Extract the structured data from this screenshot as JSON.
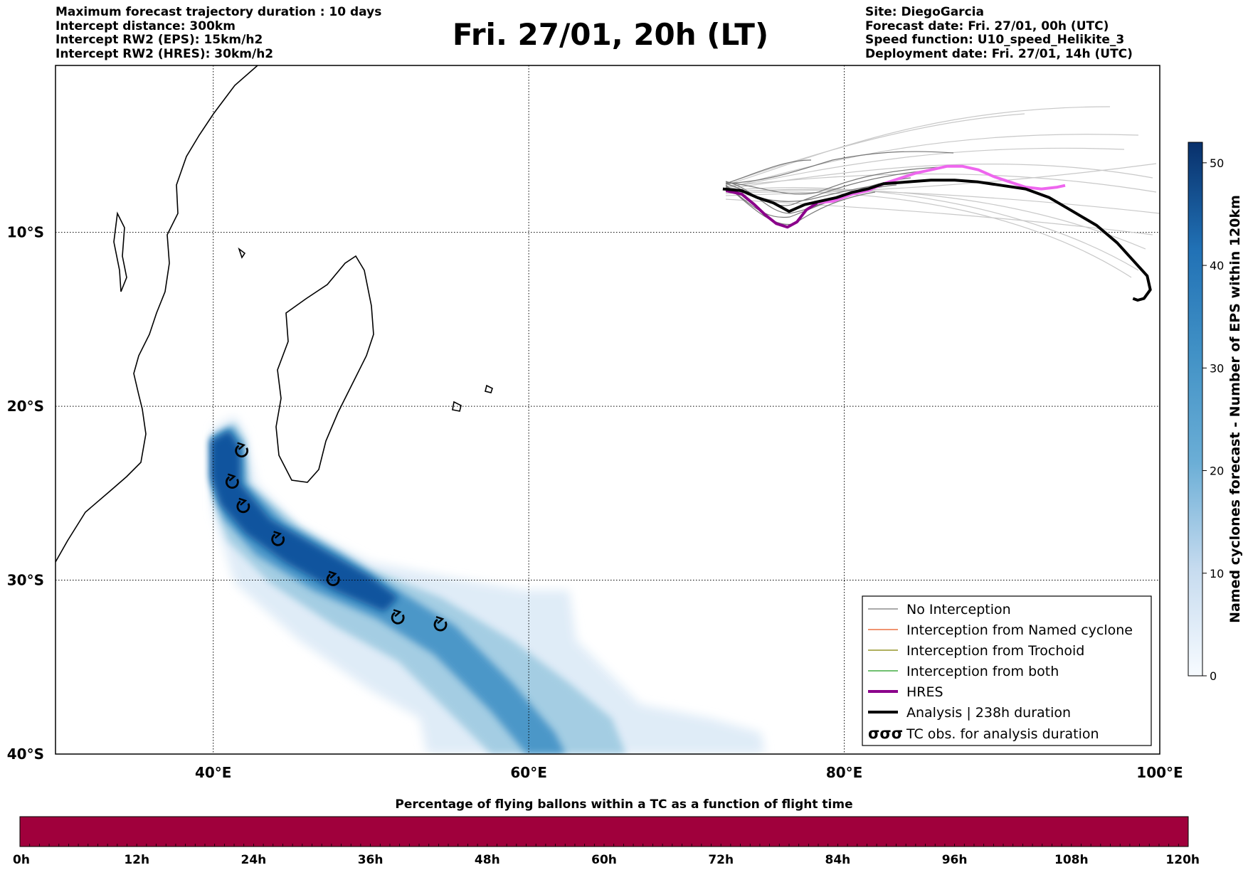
{
  "header": {
    "left_lines": [
      "Maximum forecast trajectory duration : 10 days",
      "Intercept distance: 300km",
      "Intercept RW2 (EPS):  15km/h2",
      "Intercept RW2 (HRES): 30km/h2"
    ],
    "title": "Fri. 27/01, 20h (LT)",
    "right_lines": [
      "Site: DiegoGarcia",
      "Forecast date: Fri. 27/01, 00h (UTC)",
      "Speed function: U10_speed_Helikite_3",
      "Deployment date: Fri. 27/01, 14h (UTC)"
    ]
  },
  "map": {
    "lon_range": [
      30,
      100
    ],
    "lat_range": [
      -40,
      -0.4
    ],
    "lon_ticks": [
      {
        "lon": 40,
        "label": "40°E"
      },
      {
        "lon": 60,
        "label": "60°E"
      },
      {
        "lon": 80,
        "label": "80°E"
      },
      {
        "lon": 100,
        "label": "100°E"
      }
    ],
    "lat_ticks": [
      {
        "lat": -10,
        "label": "10°S"
      },
      {
        "lat": -20,
        "label": "20°S"
      },
      {
        "lat": -30,
        "label": "30°S"
      },
      {
        "lat": -40,
        "label": "40°S"
      }
    ],
    "grid": "dotted",
    "colors": {
      "no_interception": "#777777",
      "named_cyclone": "#e8541c",
      "trochoid": "#808000",
      "both": "#1a9a1a",
      "hres": "#8b008b",
      "hres_highlight": "#ee66ee",
      "analysis": "#000000",
      "ensemble_light": "#c8c8c8",
      "cyclone_density_max": "#08306b"
    },
    "tc_observations": [
      {
        "lon": 41.8,
        "lat": -22.6
      },
      {
        "lon": 41.2,
        "lat": -24.4
      },
      {
        "lon": 41.9,
        "lat": -25.8
      },
      {
        "lon": 44.1,
        "lat": -27.7
      },
      {
        "lon": 47.6,
        "lat": -30.0
      },
      {
        "lon": 51.7,
        "lat": -32.2
      },
      {
        "lon": 54.4,
        "lat": -32.6
      }
    ],
    "analysis_track": [
      {
        "lon": 72.3,
        "lat": -7.5
      },
      {
        "lon": 73.5,
        "lat": -7.6
      },
      {
        "lon": 74.5,
        "lat": -8.0
      },
      {
        "lon": 75.5,
        "lat": -8.3
      },
      {
        "lon": 76.5,
        "lat": -8.8
      },
      {
        "lon": 77.5,
        "lat": -8.4
      },
      {
        "lon": 78.5,
        "lat": -8.2
      },
      {
        "lon": 79.5,
        "lat": -8.0
      },
      {
        "lon": 80.5,
        "lat": -7.7
      },
      {
        "lon": 81.5,
        "lat": -7.5
      },
      {
        "lon": 82.5,
        "lat": -7.2
      },
      {
        "lon": 84.0,
        "lat": -7.1
      },
      {
        "lon": 85.5,
        "lat": -7.0
      },
      {
        "lon": 87.0,
        "lat": -7.0
      },
      {
        "lon": 88.5,
        "lat": -7.1
      },
      {
        "lon": 90.0,
        "lat": -7.3
      },
      {
        "lon": 91.5,
        "lat": -7.5
      },
      {
        "lon": 93.0,
        "lat": -8.0
      },
      {
        "lon": 94.5,
        "lat": -8.8
      },
      {
        "lon": 96.0,
        "lat": -9.6
      },
      {
        "lon": 97.3,
        "lat": -10.6
      },
      {
        "lon": 98.3,
        "lat": -11.6
      },
      {
        "lon": 99.2,
        "lat": -12.5
      },
      {
        "lon": 99.4,
        "lat": -13.3
      },
      {
        "lon": 99.0,
        "lat": -13.8
      },
      {
        "lon": 98.6,
        "lat": -13.9
      },
      {
        "lon": 98.3,
        "lat": -13.8
      }
    ],
    "hres_track": [
      {
        "lon": 72.5,
        "lat": -7.6
      },
      {
        "lon": 73.5,
        "lat": -7.8
      },
      {
        "lon": 74.3,
        "lat": -8.4
      },
      {
        "lon": 75.0,
        "lat": -9.0
      },
      {
        "lon": 75.7,
        "lat": -9.5
      },
      {
        "lon": 76.4,
        "lat": -9.7
      },
      {
        "lon": 77.0,
        "lat": -9.4
      },
      {
        "lon": 77.6,
        "lat": -8.7
      },
      {
        "lon": 78.3,
        "lat": -8.3
      },
      {
        "lon": 79.3,
        "lat": -8.2
      },
      {
        "lon": 80.5,
        "lat": -7.8
      },
      {
        "lon": 81.5,
        "lat": -7.6
      },
      {
        "lon": 82.5,
        "lat": -7.2
      },
      {
        "lon": 83.5,
        "lat": -6.9
      },
      {
        "lon": 84.5,
        "lat": -6.6
      },
      {
        "lon": 85.5,
        "lat": -6.4
      },
      {
        "lon": 86.5,
        "lat": -6.2
      },
      {
        "lon": 87.5,
        "lat": -6.2
      },
      {
        "lon": 88.5,
        "lat": -6.4
      },
      {
        "lon": 89.5,
        "lat": -6.8
      },
      {
        "lon": 90.5,
        "lat": -7.1
      },
      {
        "lon": 91.5,
        "lat": -7.4
      },
      {
        "lon": 92.5,
        "lat": -7.5
      },
      {
        "lon": 93.5,
        "lat": -7.4
      },
      {
        "lon": 94.0,
        "lat": -7.3
      }
    ],
    "legend": [
      {
        "key": "no_interception",
        "label": "No Interception"
      },
      {
        "key": "named_cyclone",
        "label": "Interception from Named cyclone"
      },
      {
        "key": "trochoid",
        "label": "Interception from Trochoid"
      },
      {
        "key": "both",
        "label": "Interception from both"
      },
      {
        "key": "hres",
        "label": "HRES"
      },
      {
        "key": "analysis",
        "label": "Analysis | 238h duration"
      },
      {
        "key": "tc_obs",
        "label": "TC obs. for analysis duration"
      }
    ],
    "tc_symbol_text": "σσσ"
  },
  "colorbar": {
    "label": "Named cyclones forecast - Number of EPS within 120km",
    "range": [
      0,
      52
    ],
    "ticks": [
      0,
      10,
      20,
      30,
      40,
      50
    ],
    "colormap": "Blues"
  },
  "flight_bar": {
    "title": "Percentage of flying ballons within a TC as a function of flight time",
    "color": "#a0003c",
    "ticks": [
      "0h",
      "12h",
      "24h",
      "36h",
      "48h",
      "60h",
      "72h",
      "84h",
      "96h",
      "108h",
      "120h"
    ]
  }
}
